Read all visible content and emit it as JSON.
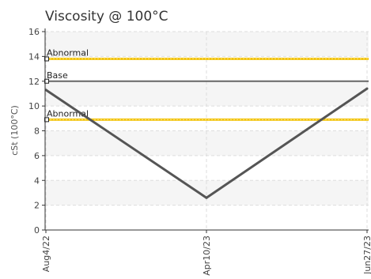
{
  "chart_data": {
    "type": "line",
    "title": "Viscosity @ 100°C",
    "xlabel": "",
    "ylabel": "cSt (100°C)",
    "ylim": [
      0,
      16
    ],
    "yticks": [
      0,
      2,
      4,
      6,
      8,
      10,
      12,
      14,
      16
    ],
    "grid": true,
    "categories": [
      "Aug4/22",
      "Apr10/23",
      "Jun27/23"
    ],
    "series": [
      {
        "values": [
          11.3,
          2.6,
          11.4
        ],
        "color": "#555555"
      }
    ],
    "reference_lines": [
      {
        "label": "Abnormal",
        "value": 13.8,
        "color": "#f2c40e"
      },
      {
        "label": "Base",
        "value": 12.0,
        "color": "#666666"
      },
      {
        "label": "Abnormal",
        "value": 8.9,
        "color": "#f2c40e"
      }
    ]
  }
}
